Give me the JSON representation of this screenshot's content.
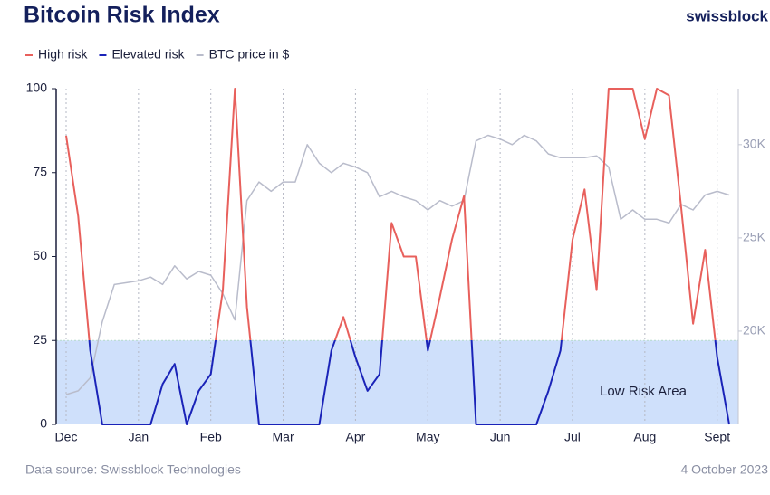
{
  "chart_data": {
    "type": "line",
    "title": "Bitcoin Risk Index",
    "brand": "swissblock",
    "source": "Data source: Swissblock Technologies",
    "date": "4 October 2023",
    "categories": [
      "Dec",
      null,
      null,
      null,
      null,
      null,
      "Jan",
      null,
      null,
      null,
      null,
      null,
      "Feb",
      null,
      null,
      null,
      null,
      null,
      "Mar",
      null,
      null,
      null,
      null,
      null,
      "Apr",
      null,
      null,
      null,
      null,
      null,
      "May",
      null,
      null,
      null,
      null,
      null,
      "Jun",
      null,
      null,
      null,
      null,
      null,
      "Jul",
      null,
      null,
      null,
      null,
      null,
      "Aug",
      null,
      null,
      null,
      null,
      null,
      "Sept",
      null
    ],
    "series": [
      {
        "name": "High risk",
        "color": "#e8605c",
        "values": [
          86,
          62,
          22,
          null,
          null,
          null,
          null,
          null,
          null,
          null,
          null,
          null,
          15,
          40,
          100,
          35,
          0,
          null,
          null,
          null,
          null,
          null,
          22,
          32,
          20,
          null,
          15,
          60,
          50,
          50,
          22,
          38,
          55,
          68,
          0,
          null,
          null,
          null,
          null,
          null,
          null,
          22,
          55,
          70,
          40,
          100,
          100,
          100,
          85,
          100,
          98,
          65,
          30,
          52,
          20,
          null
        ]
      },
      {
        "name": "Elevated risk",
        "color": "#1a23b8",
        "values": [
          null,
          62,
          22,
          0,
          0,
          0,
          0,
          0,
          12,
          18,
          0,
          10,
          15,
          40,
          null,
          35,
          0,
          0,
          0,
          0,
          0,
          0,
          22,
          32,
          20,
          10,
          15,
          60,
          null,
          50,
          22,
          38,
          null,
          68,
          0,
          0,
          0,
          0,
          0,
          0,
          10,
          22,
          55,
          null,
          null,
          null,
          null,
          null,
          null,
          null,
          null,
          null,
          null,
          52,
          20,
          0
        ]
      },
      {
        "name": "BTC price in $",
        "color": "#b9bccb",
        "axis": "y2",
        "values": [
          16600,
          16800,
          17500,
          20500,
          22500,
          22600,
          22700,
          22900,
          22500,
          23500,
          22800,
          23200,
          23000,
          22000,
          20600,
          27000,
          28000,
          27500,
          28000,
          28000,
          30000,
          29000,
          28500,
          29000,
          28800,
          28500,
          27200,
          27500,
          27200,
          27000,
          26500,
          27000,
          26700,
          27000,
          30200,
          30500,
          30300,
          30000,
          30500,
          30200,
          29500,
          29300,
          29300,
          29300,
          29400,
          28800,
          26000,
          26500,
          26000,
          26000,
          25800,
          26800,
          26500,
          27300,
          27500,
          27300
        ]
      }
    ],
    "low_risk_area": {
      "label": "Low Risk Area",
      "max": 25
    },
    "ylim": [
      0,
      100
    ],
    "yticks": [
      0,
      25,
      50,
      75,
      100
    ],
    "y2lim": [
      15000,
      33000
    ],
    "y2ticks": [
      {
        "value": 20000,
        "label": "20K"
      },
      {
        "value": 25000,
        "label": "25K"
      },
      {
        "value": 30000,
        "label": "30K"
      }
    ]
  }
}
